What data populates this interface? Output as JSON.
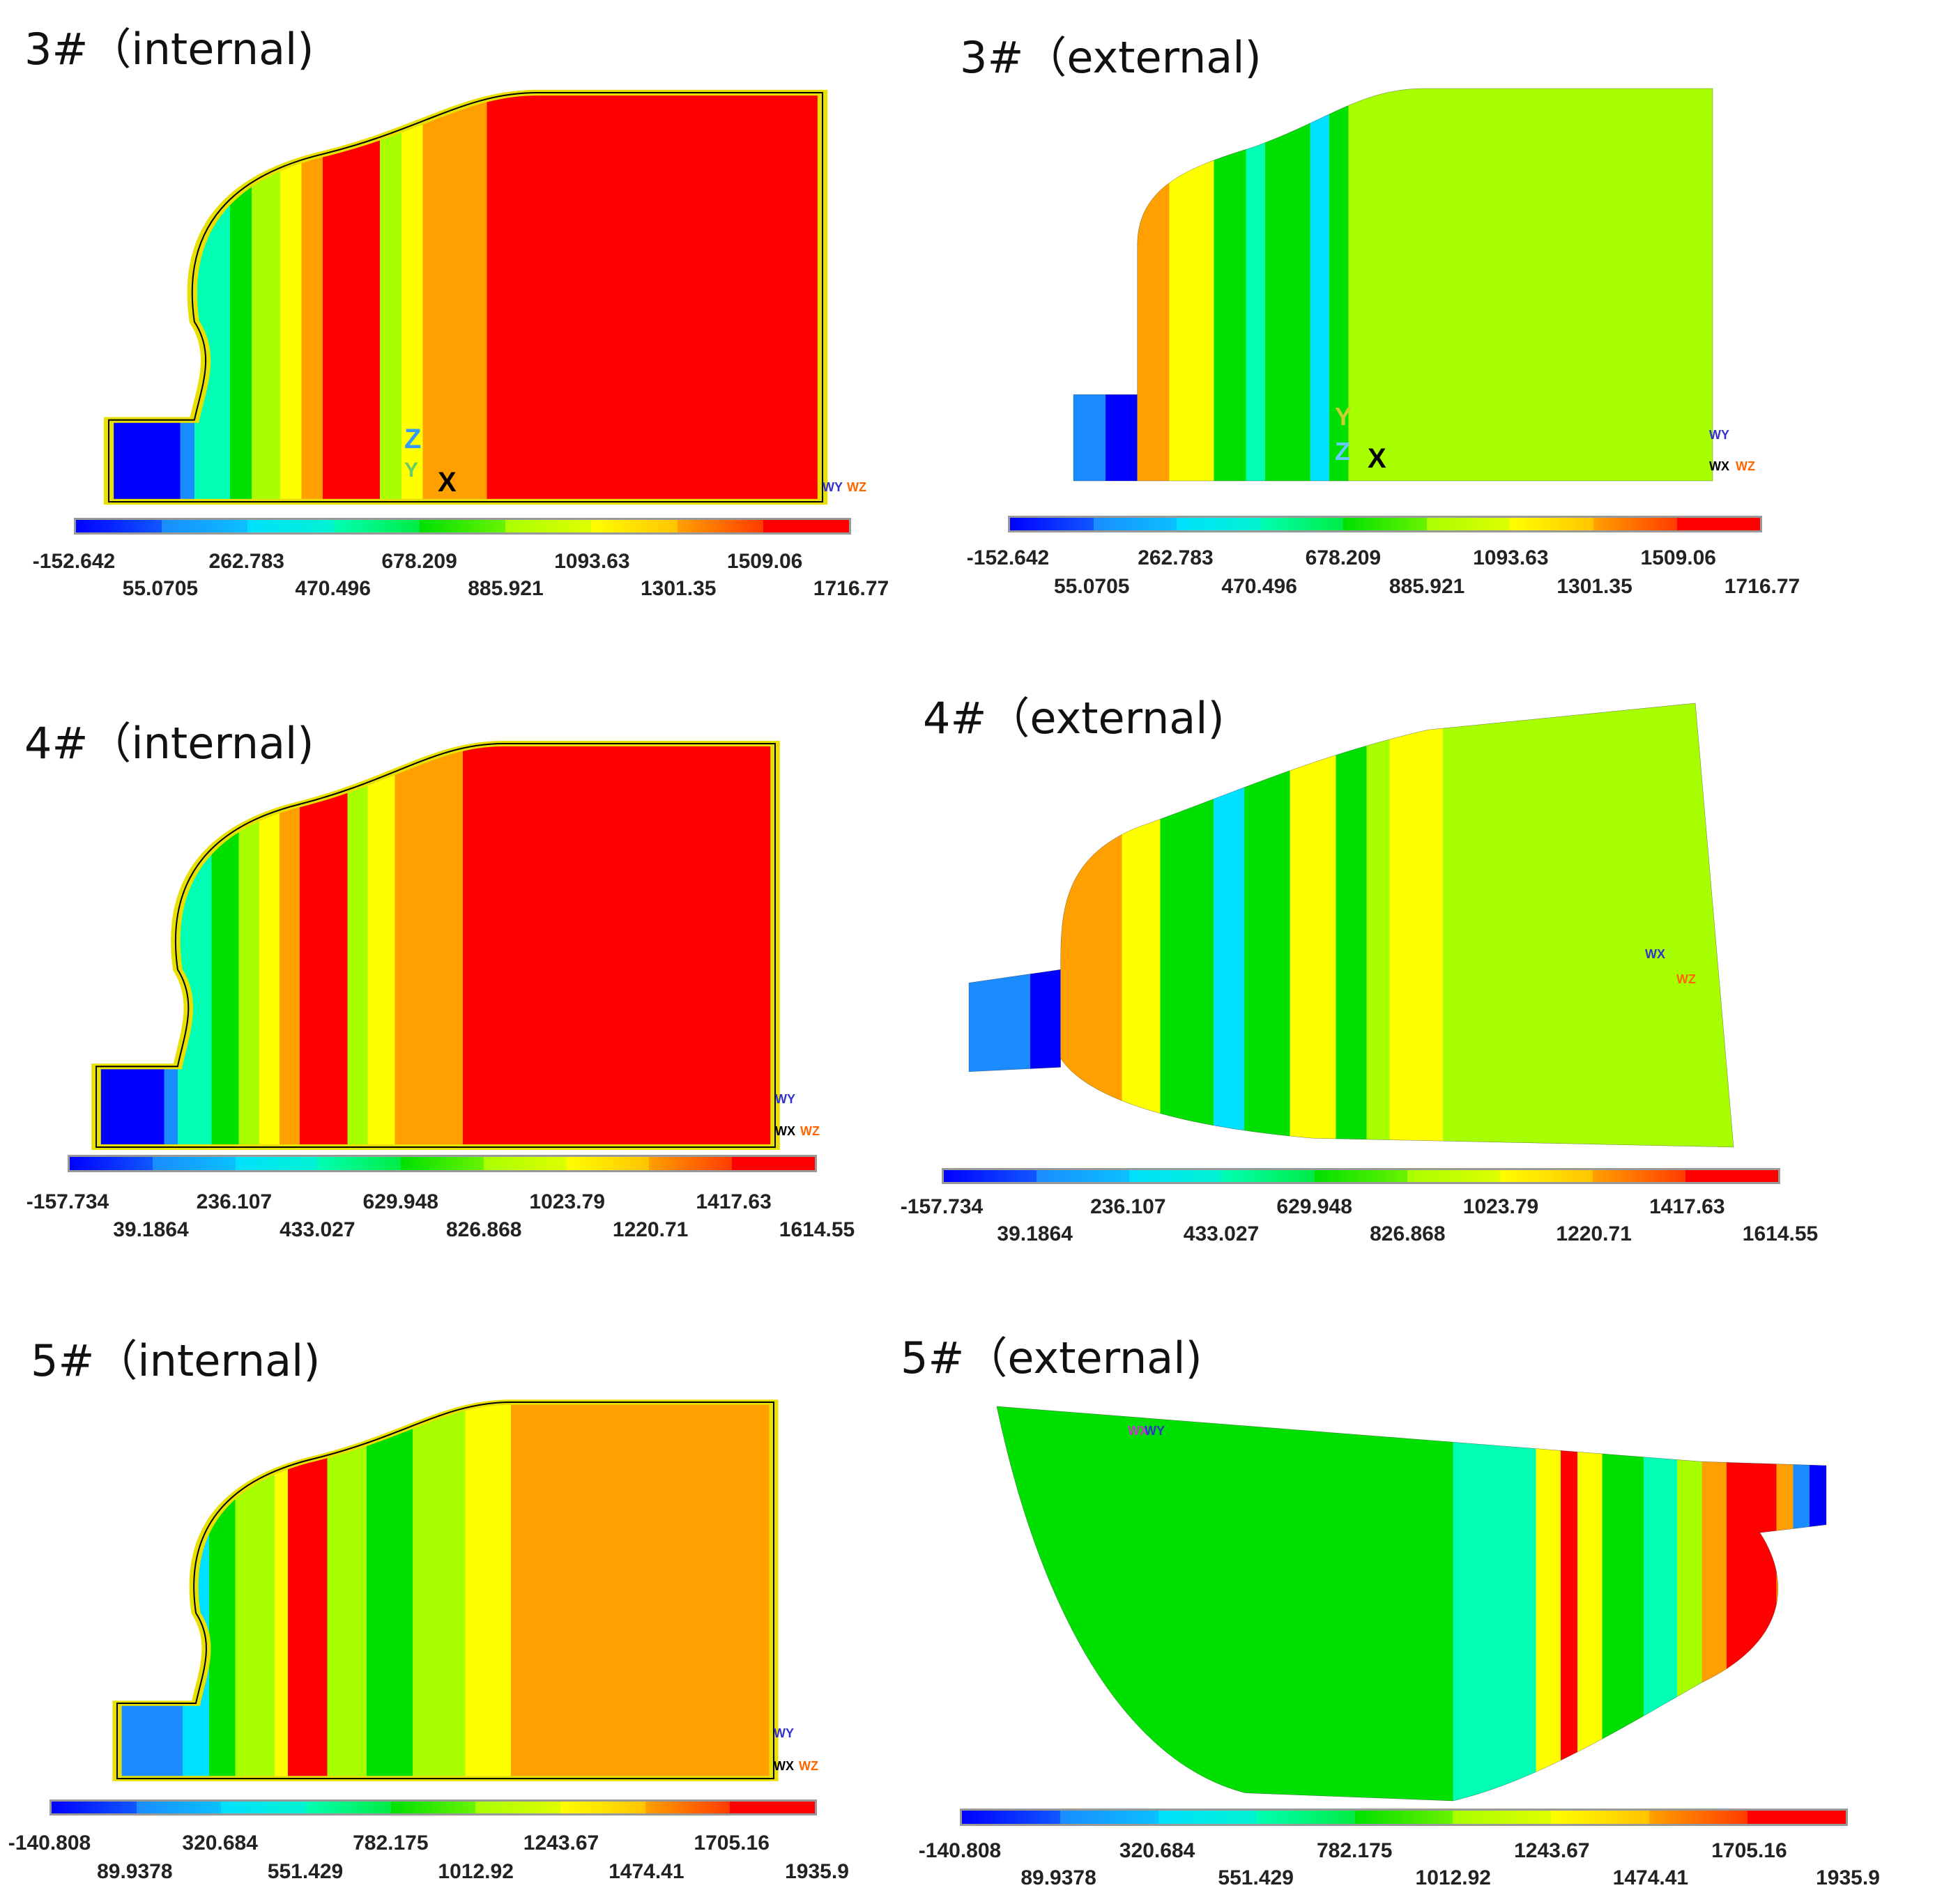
{
  "panels": [
    {
      "title": "3#（internal)",
      "axis_labels": [
        "Z",
        "Y",
        "X",
        "WY",
        "WZ"
      ],
      "legend_labels": [
        -152.642,
        55.0705,
        262.783,
        470.496,
        678.209,
        885.921,
        1093.63,
        1301.35,
        1509.06,
        1716.77
      ]
    },
    {
      "title": "3#（external)",
      "axis_labels": [
        "Y",
        "Z",
        "X",
        "WY",
        "WX",
        "WZ"
      ],
      "legend_labels": [
        -152.642,
        55.0705,
        262.783,
        470.496,
        678.209,
        885.921,
        1093.63,
        1301.35,
        1509.06,
        1716.77
      ]
    },
    {
      "title": "4#（internal)",
      "axis_labels": [
        "WY",
        "WX",
        "WZ"
      ],
      "legend_labels": [
        -157.734,
        39.1864,
        236.107,
        433.027,
        629.948,
        826.868,
        1023.79,
        1220.71,
        1417.63,
        1614.55
      ]
    },
    {
      "title": "4#（external)",
      "axis_labels": [
        "WX",
        "WZ"
      ],
      "legend_labels": [
        -157.734,
        39.1864,
        236.107,
        433.027,
        629.948,
        826.868,
        1023.79,
        1220.71,
        1417.63,
        1614.55
      ]
    },
    {
      "title": "5#（internal)",
      "axis_labels": [
        "WY",
        "WX",
        "WZ"
      ],
      "legend_labels": [
        -140.808,
        89.9378,
        320.684,
        551.429,
        782.175,
        1012.92,
        1243.67,
        1474.41,
        1705.16,
        1935.9
      ]
    },
    {
      "title": "5#（external)",
      "axis_labels": [
        "WX",
        "WY"
      ],
      "legend_labels": [
        -140.808,
        89.9378,
        320.684,
        551.429,
        782.175,
        1012.92,
        1243.67,
        1474.41,
        1705.16,
        1935.9
      ]
    }
  ]
}
